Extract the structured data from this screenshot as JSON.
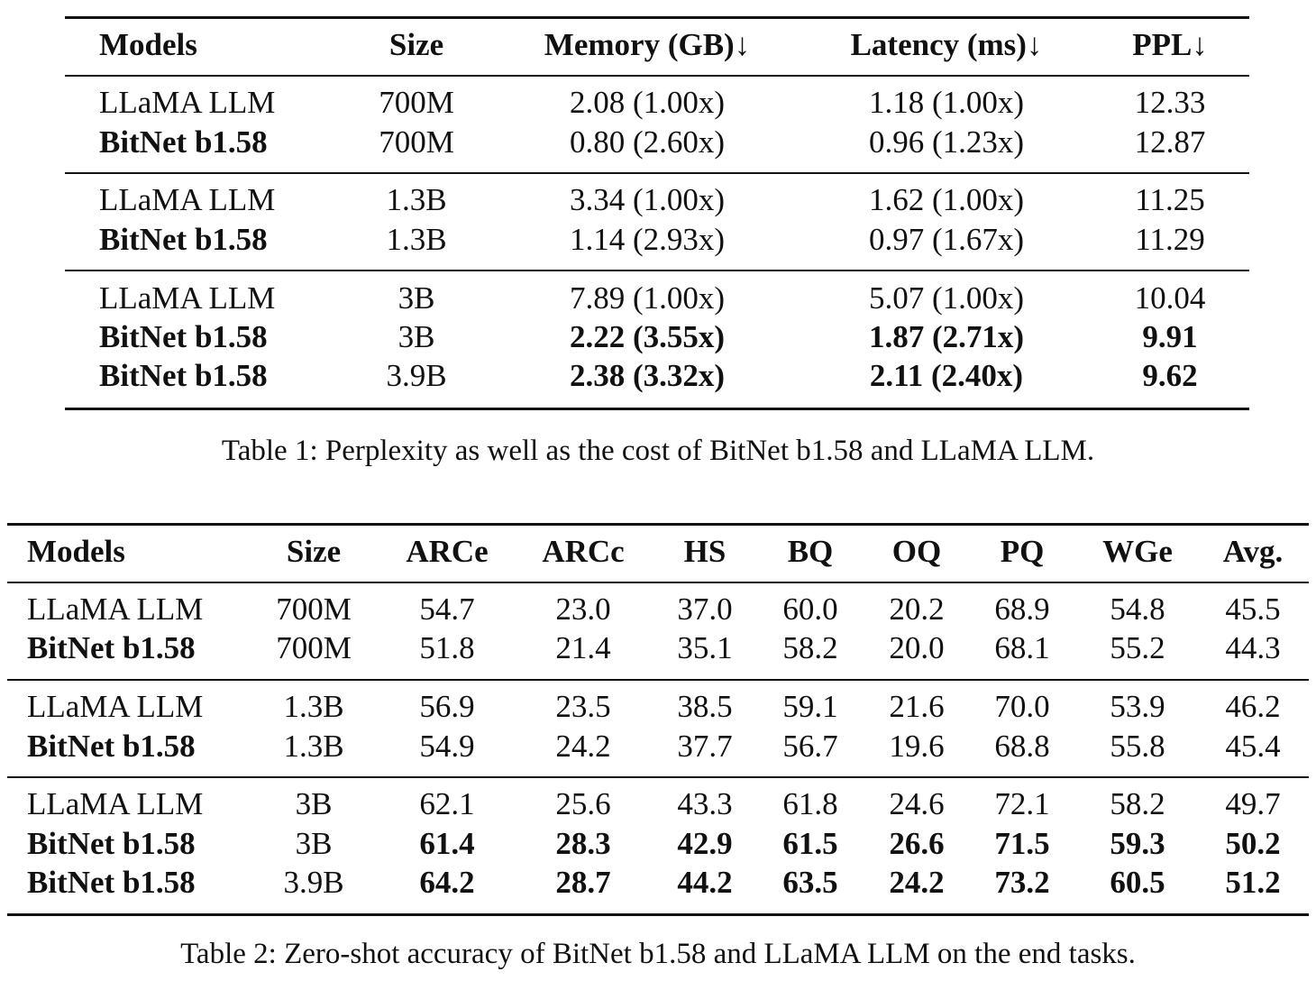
{
  "table1": {
    "headers": [
      "Models",
      "Size",
      "Memory (GB)↓",
      "Latency (ms)↓",
      "PPL↓"
    ],
    "groups": [
      [
        {
          "cells": [
            "LLaMA LLM",
            "700M",
            "2.08 (1.00x)",
            "1.18 (1.00x)",
            "12.33"
          ],
          "bold": [
            false,
            false,
            false,
            false,
            false
          ]
        },
        {
          "cells": [
            "BitNet b1.58",
            "700M",
            "0.80 (2.60x)",
            "0.96 (1.23x)",
            "12.87"
          ],
          "bold": [
            true,
            false,
            false,
            false,
            false
          ]
        }
      ],
      [
        {
          "cells": [
            "LLaMA LLM",
            "1.3B",
            "3.34 (1.00x)",
            "1.62 (1.00x)",
            "11.25"
          ],
          "bold": [
            false,
            false,
            false,
            false,
            false
          ]
        },
        {
          "cells": [
            "BitNet b1.58",
            "1.3B",
            "1.14 (2.93x)",
            "0.97 (1.67x)",
            "11.29"
          ],
          "bold": [
            true,
            false,
            false,
            false,
            false
          ]
        }
      ],
      [
        {
          "cells": [
            "LLaMA LLM",
            "3B",
            "7.89 (1.00x)",
            "5.07 (1.00x)",
            "10.04"
          ],
          "bold": [
            false,
            false,
            false,
            false,
            false
          ]
        },
        {
          "cells": [
            "BitNet b1.58",
            "3B",
            "2.22 (3.55x)",
            "1.87 (2.71x)",
            "9.91"
          ],
          "bold": [
            true,
            false,
            true,
            true,
            true
          ]
        },
        {
          "cells": [
            "BitNet b1.58",
            "3.9B",
            "2.38 (3.32x)",
            "2.11 (2.40x)",
            "9.62"
          ],
          "bold": [
            true,
            false,
            true,
            true,
            true
          ]
        }
      ]
    ],
    "caption": "Table 1: Perplexity as well as the cost of BitNet b1.58 and LLaMA LLM."
  },
  "table2": {
    "headers": [
      "Models",
      "Size",
      "ARCe",
      "ARCc",
      "HS",
      "BQ",
      "OQ",
      "PQ",
      "WGe",
      "Avg."
    ],
    "groups": [
      [
        {
          "cells": [
            "LLaMA LLM",
            "700M",
            "54.7",
            "23.0",
            "37.0",
            "60.0",
            "20.2",
            "68.9",
            "54.8",
            "45.5"
          ],
          "bold": [
            false,
            false,
            false,
            false,
            false,
            false,
            false,
            false,
            false,
            false
          ]
        },
        {
          "cells": [
            "BitNet b1.58",
            "700M",
            "51.8",
            "21.4",
            "35.1",
            "58.2",
            "20.0",
            "68.1",
            "55.2",
            "44.3"
          ],
          "bold": [
            true,
            false,
            false,
            false,
            false,
            false,
            false,
            false,
            false,
            false
          ]
        }
      ],
      [
        {
          "cells": [
            "LLaMA LLM",
            "1.3B",
            "56.9",
            "23.5",
            "38.5",
            "59.1",
            "21.6",
            "70.0",
            "53.9",
            "46.2"
          ],
          "bold": [
            false,
            false,
            false,
            false,
            false,
            false,
            false,
            false,
            false,
            false
          ]
        },
        {
          "cells": [
            "BitNet b1.58",
            "1.3B",
            "54.9",
            "24.2",
            "37.7",
            "56.7",
            "19.6",
            "68.8",
            "55.8",
            "45.4"
          ],
          "bold": [
            true,
            false,
            false,
            false,
            false,
            false,
            false,
            false,
            false,
            false
          ]
        }
      ],
      [
        {
          "cells": [
            "LLaMA LLM",
            "3B",
            "62.1",
            "25.6",
            "43.3",
            "61.8",
            "24.6",
            "72.1",
            "58.2",
            "49.7"
          ],
          "bold": [
            false,
            false,
            false,
            false,
            false,
            false,
            false,
            false,
            false,
            false
          ]
        },
        {
          "cells": [
            "BitNet b1.58",
            "3B",
            "61.4",
            "28.3",
            "42.9",
            "61.5",
            "26.6",
            "71.5",
            "59.3",
            "50.2"
          ],
          "bold": [
            true,
            false,
            true,
            true,
            true,
            true,
            true,
            true,
            true,
            true
          ]
        },
        {
          "cells": [
            "BitNet b1.58",
            "3.9B",
            "64.2",
            "28.7",
            "44.2",
            "63.5",
            "24.2",
            "73.2",
            "60.5",
            "51.2"
          ],
          "bold": [
            true,
            false,
            true,
            true,
            true,
            true,
            true,
            true,
            true,
            true
          ]
        }
      ]
    ],
    "caption": "Table 2: Zero-shot accuracy of BitNet b1.58 and LLaMA LLM on the end tasks."
  }
}
